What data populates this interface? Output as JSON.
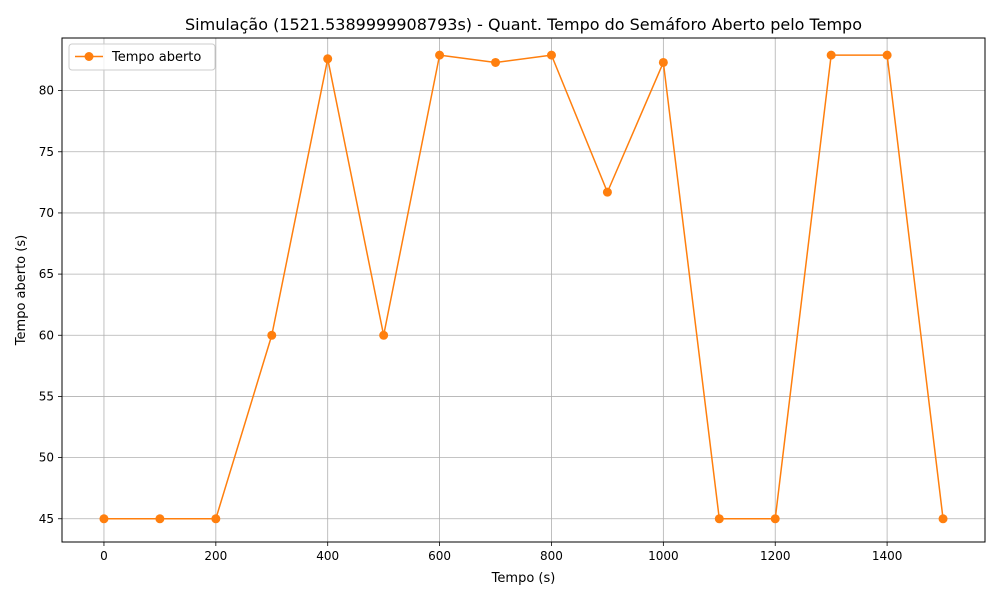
{
  "chart_data": {
    "type": "line",
    "title": "Simulação (1521.5389999908793s) - Quant. Tempo do Semáforo Aberto pelo Tempo",
    "xlabel": "Tempo (s)",
    "ylabel": "Tempo aberto (s)",
    "xlim": [
      -75,
      1575
    ],
    "ylim": [
      43.1,
      84.3
    ],
    "xticks": [
      0,
      200,
      400,
      600,
      800,
      1000,
      1200,
      1400
    ],
    "xtick_labels": [
      "0",
      "200",
      "400",
      "600",
      "800",
      "1000",
      "1200",
      "1400"
    ],
    "yticks": [
      45,
      50,
      55,
      60,
      65,
      70,
      75,
      80
    ],
    "ytick_labels": [
      "45",
      "50",
      "55",
      "60",
      "65",
      "70",
      "75",
      "80"
    ],
    "grid": true,
    "legend_position": "top-left",
    "series": [
      {
        "name": "Tempo aberto",
        "color": "#ff7f0e",
        "marker": "circle",
        "x": [
          0,
          100,
          200,
          300,
          400,
          500,
          600,
          700,
          800,
          900,
          1000,
          1100,
          1200,
          1300,
          1400,
          1500
        ],
        "y": [
          45,
          45,
          45,
          60,
          82.6,
          60,
          82.9,
          82.3,
          82.9,
          71.7,
          82.3,
          45,
          45,
          82.9,
          82.9,
          45
        ]
      }
    ]
  }
}
